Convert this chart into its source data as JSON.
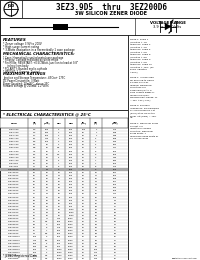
{
  "title_main": "3EZ3.9D5  thru  3EZ200D6",
  "title_sub": "3W SILICON ZENER DIODE",
  "voltage_range_label": "VOLTAGE RANGE",
  "voltage_range_value": "3.9 to 200 Volts",
  "features_title": "FEATURES",
  "features": [
    "* Zener voltage 3.9V to 200V",
    "* High surge current rating",
    "* 3-Watts dissipation in a hermetically 1 case package"
  ],
  "mech_title": "MECHANICAL CHARACTERISTICS:",
  "mech": [
    "* Case: Hermetically sealed metal case package",
    "* Polarity: Cathode indicated by white stripe",
    "* Fin/Mfide: RESISTANT: +0.5C/Watt, Junction to lead at 3/8\"",
    "     inches from body",
    "* POLARITY: Banded end is cathode",
    "* WEIGHT: 2-4 grams. Typical"
  ],
  "max_title": "MAXIMUM RATINGS",
  "max_ratings": [
    "Junction and Storage Temperature: -65Cto+ 175C",
    "DC Power Dissipation: 3 Watt",
    "Power Derating: 20mW/C, above 25C",
    "Forward Voltage @ 200mA: 1.2 Volts"
  ],
  "elec_title": "* ELECTRICAL CHARACTERISTICS @ 25°C",
  "table_col_headers": [
    "TYPE",
    "NOMINAL\nZENER\nVOLTAGE\nVz(V)",
    "ZENER\nTEST\nCURRENT\nIz(mA)",
    "MAX\nZENER\nIMP\nZzT",
    "MAX\nZENER\nIMP\nZzK",
    "MAX\nREV\nLEAK\nIR(uA)",
    "VR\n(V)",
    "MAX\nZENER\nCUR\nIzm"
  ],
  "table_data": [
    [
      "3EZ3.9D5",
      "3.9",
      "150",
      "2",
      "400",
      "100",
      "1",
      "770"
    ],
    [
      "3EZ4.3D5",
      "4.3",
      "130",
      "2",
      "400",
      "50",
      "1",
      "698"
    ],
    [
      "3EZ4.7D5",
      "4.7",
      "120",
      "2",
      "500",
      "10",
      "1",
      "638"
    ],
    [
      "3EZ5.1D5",
      "5.1",
      "110",
      "2",
      "550",
      "10",
      "2",
      "588"
    ],
    [
      "3EZ5.6D5",
      "5.6",
      "100",
      "2",
      "600",
      "10",
      "3",
      "536"
    ],
    [
      "3EZ6.2D5",
      "6.2",
      "90",
      "2",
      "700",
      "10",
      "4",
      "484"
    ],
    [
      "3EZ6.8D5",
      "6.8",
      "80",
      "3.5",
      "700",
      "10",
      "5",
      "441"
    ],
    [
      "3EZ7.5D5",
      "7.5",
      "75",
      "4",
      "700",
      "10",
      "6",
      "400"
    ],
    [
      "3EZ8.2D5",
      "8.2",
      "70",
      "4.5",
      "700",
      "10",
      "6",
      "366"
    ],
    [
      "3EZ8.7D5",
      "8.7",
      "65",
      "5",
      "700",
      "10",
      "6",
      "345"
    ],
    [
      "3EZ9.1D5",
      "9.1",
      "65",
      "5",
      "700",
      "10",
      "7",
      "330"
    ],
    [
      "3EZ10D5",
      "10",
      "60",
      "7",
      "700",
      "10",
      "7",
      "300"
    ],
    [
      "3EZ11D5",
      "11",
      "55",
      "8",
      "700",
      "10",
      "8",
      "273"
    ],
    [
      "3EZ12D10",
      "12",
      "63",
      "9",
      "700",
      "10",
      "9",
      "250"
    ],
    [
      "3EZ13D10",
      "13",
      "50",
      "10",
      "700",
      "10",
      "10",
      "231"
    ],
    [
      "3EZ15D10",
      "15",
      "45",
      "14",
      "700",
      "10",
      "11",
      "200"
    ],
    [
      "3EZ16D10",
      "16",
      "40",
      "16",
      "700",
      "10",
      "12",
      "188"
    ],
    [
      "3EZ18D10",
      "18",
      "35",
      "20",
      "750",
      "10",
      "14",
      "167"
    ],
    [
      "3EZ20D10",
      "20",
      "32",
      "22",
      "750",
      "10",
      "14",
      "150"
    ],
    [
      "3EZ22D10",
      "22",
      "29",
      "23",
      "750",
      "10",
      "16",
      "136"
    ],
    [
      "3EZ24D10",
      "24",
      "27",
      "25",
      "750",
      "10",
      "17",
      "125"
    ],
    [
      "3EZ27D10",
      "27",
      "24",
      "35",
      "750",
      "10",
      "20",
      "111"
    ],
    [
      "3EZ30D10",
      "30",
      "22",
      "40",
      "750",
      "10",
      "22",
      "100"
    ],
    [
      "3EZ33D10",
      "33",
      "20",
      "45",
      "750",
      "10",
      "24",
      "91"
    ],
    [
      "3EZ36D10",
      "36",
      "18",
      "50",
      "750",
      "10",
      "25",
      "83"
    ],
    [
      "3EZ39D10",
      "39",
      "16",
      "60",
      "750",
      "10",
      "28",
      "77"
    ],
    [
      "3EZ43D10",
      "43",
      "14",
      "70",
      "1000",
      "10",
      "30",
      "70"
    ],
    [
      "3EZ47D10",
      "47",
      "13",
      "80",
      "1500",
      "10",
      "33",
      "64"
    ],
    [
      "3EZ51D10",
      "51",
      "12",
      "95",
      "1500",
      "10",
      "36",
      "59"
    ],
    [
      "3EZ56D10",
      "56",
      "11",
      "110",
      "2000",
      "10",
      "40",
      "54"
    ],
    [
      "3EZ62D10",
      "62",
      "9.5",
      "125",
      "2000",
      "10",
      "44",
      "48"
    ],
    [
      "3EZ68D10",
      "68",
      "9",
      "150",
      "2000",
      "10",
      "48",
      "44"
    ],
    [
      "3EZ75D10",
      "75",
      "8",
      "175",
      "2000",
      "10",
      "54",
      "40"
    ],
    [
      "3EZ82D10",
      "82",
      "7",
      "200",
      "3000",
      "10",
      "58",
      "37"
    ],
    [
      "3EZ91D10",
      "91",
      "6.5",
      "250",
      "3000",
      "10",
      "64",
      "33"
    ],
    [
      "3EZ100D10",
      "100",
      "6",
      "350",
      "3000",
      "10",
      "70",
      "30"
    ],
    [
      "3EZ110D10",
      "110",
      "5.5",
      "450",
      "4000",
      "10",
      "78",
      "27"
    ],
    [
      "3EZ120D10",
      "120",
      "5",
      "600",
      "4000",
      "10",
      "84",
      "25"
    ],
    [
      "3EZ130D10",
      "130",
      "4.5",
      "600",
      "5000",
      "10",
      "90",
      "23"
    ],
    [
      "3EZ150D10",
      "150",
      "4",
      "1000",
      "5000",
      "10",
      "105",
      "20"
    ],
    [
      "3EZ160D10",
      "160",
      "4",
      "1000",
      "6000",
      "10",
      "112",
      "19"
    ],
    [
      "3EZ180D10",
      "180",
      "3.5",
      "1200",
      "6000",
      "10",
      "126",
      "17"
    ],
    [
      "3EZ200D6",
      "200",
      "3.5",
      "1500",
      "6000",
      "10",
      "140",
      "15"
    ]
  ],
  "highlight_row": "3EZ12D10",
  "note1": "NOTE 1: Suffix 1 indicates +-1% tolerance. Suffix 2 indicates +-2% tolerance. Suffix 5 indicates +-5% tolerance. Suffix 8 indicates +-8% tolerance. Suffix 9 indicates +-5% tolerance. Suffix 10 indicates +-10%. (no suffix indicates +-20%)",
  "note2": "NOTE 2: Is measured for applying to clamp a 10ms pulse by reading. Measuring conditions are baselined 5/8\" to 1\" from chassis edges of measuring origin. Measurement Range: T1 = 25C +5C (-25C).",
  "note3": "NOTE 3: Dynamic impedance. ZZ measured by superimposing 1 at (RMS) at 60 Hz on the zener I at (RMS) = 10% IZT.",
  "note4": "NOTE 4: Maximum surge current is a repetitively pulsed condition. Maximum surge width: 1 maximum-pulse width of 0.1 milliseconds",
  "footer": "* JEDEC Registered Data",
  "bg_color": "#ffffff",
  "text_color": "#000000"
}
